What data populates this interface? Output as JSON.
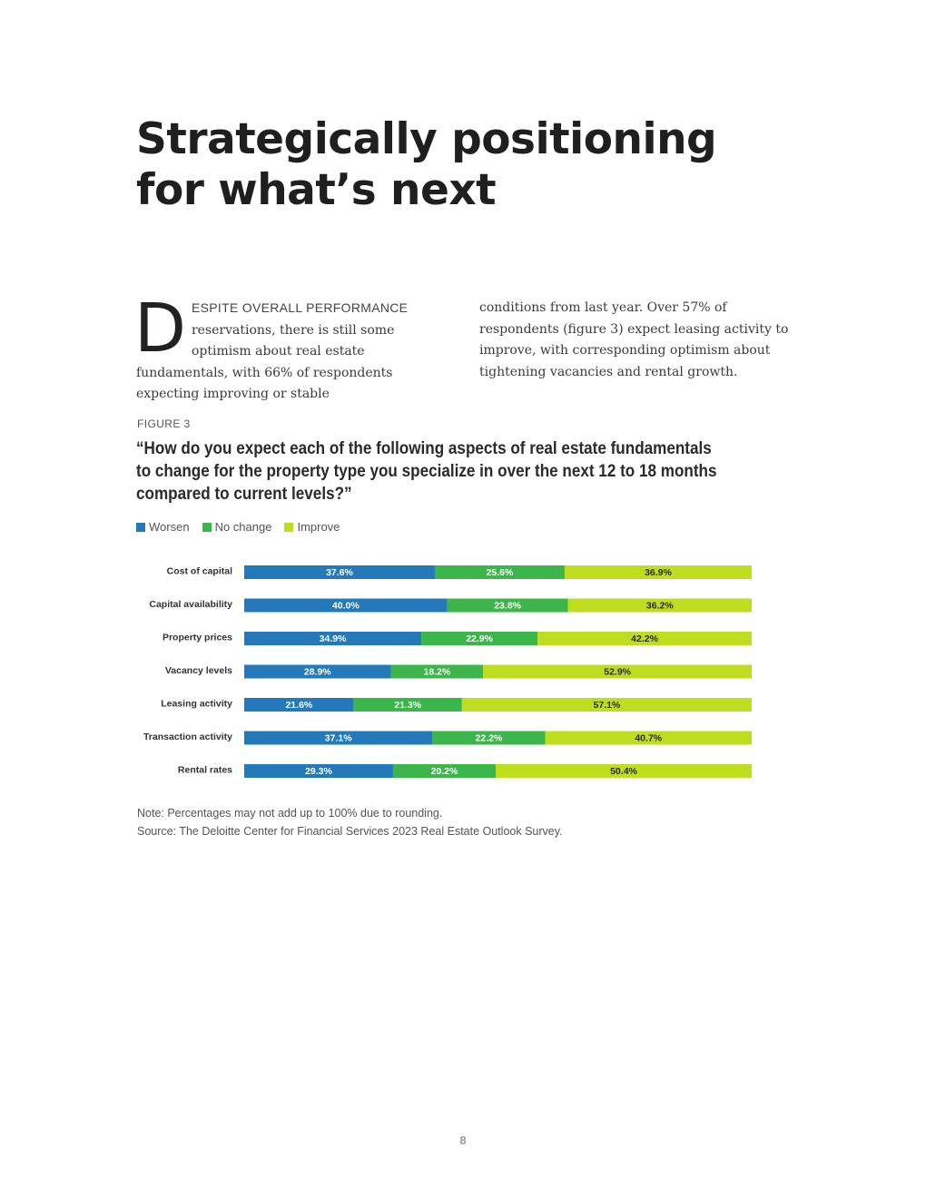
{
  "title_line1": "Strategically positioning",
  "title_line2": "for what’s next",
  "body": {
    "dropcap": "D",
    "leadin": "ESPITE OVERALL PERFORMANCE",
    "col1_rest": "reservations, there is still some optimism about real estate fundamentals, with 66% of respondents expecting improving or stable",
    "col2": "conditions from last year. Over 57% of respondents (figure 3) expect leasing activity to improve, with corresponding optimism about tightening vacancies and rental growth."
  },
  "figure": {
    "label": "FIGURE 3",
    "question": "“How do you expect each of the following aspects of real estate fundamentals to change for the property type you specialize in over the next 12 to 18 months compared to current levels?”",
    "note": "Note: Percentages may not add up to 100% due to rounding.",
    "source": "Source: The Deloitte Center for Financial Services 2023 Real Estate Outlook Survey."
  },
  "colors": {
    "worsen": "#2479bb",
    "no_change": "#3cb54a",
    "improve": "#bfdd1f"
  },
  "chart_data": {
    "type": "bar",
    "orientation": "horizontal",
    "stacked": true,
    "legend_position": "top-left",
    "categories": [
      "Cost of capital",
      "Capital availability",
      "Property prices",
      "Vacancy levels",
      "Leasing activity",
      "Transaction activity",
      "Rental rates"
    ],
    "series": [
      {
        "name": "Worsen",
        "values": [
          37.6,
          40.0,
          34.9,
          28.9,
          21.6,
          37.1,
          29.3
        ],
        "labels": [
          "37.6%",
          "40.0%",
          "34.9%",
          "28.9%",
          "21.6%",
          "37.1%",
          "29.3%"
        ]
      },
      {
        "name": "No change",
        "values": [
          25.6,
          23.8,
          22.9,
          18.2,
          21.3,
          22.2,
          20.2
        ],
        "labels": [
          "25.6%",
          "23.8%",
          "22.9%",
          "18.2%",
          "21.3%",
          "22.2%",
          "20.2%"
        ]
      },
      {
        "name": "Improve",
        "values": [
          36.9,
          36.2,
          42.2,
          52.9,
          57.1,
          40.7,
          50.4
        ],
        "labels": [
          "36.9%",
          "36.2%",
          "42.2%",
          "52.9%",
          "57.1%",
          "40.7%",
          "50.4%"
        ]
      }
    ],
    "grid": false
  },
  "page_number": "8"
}
